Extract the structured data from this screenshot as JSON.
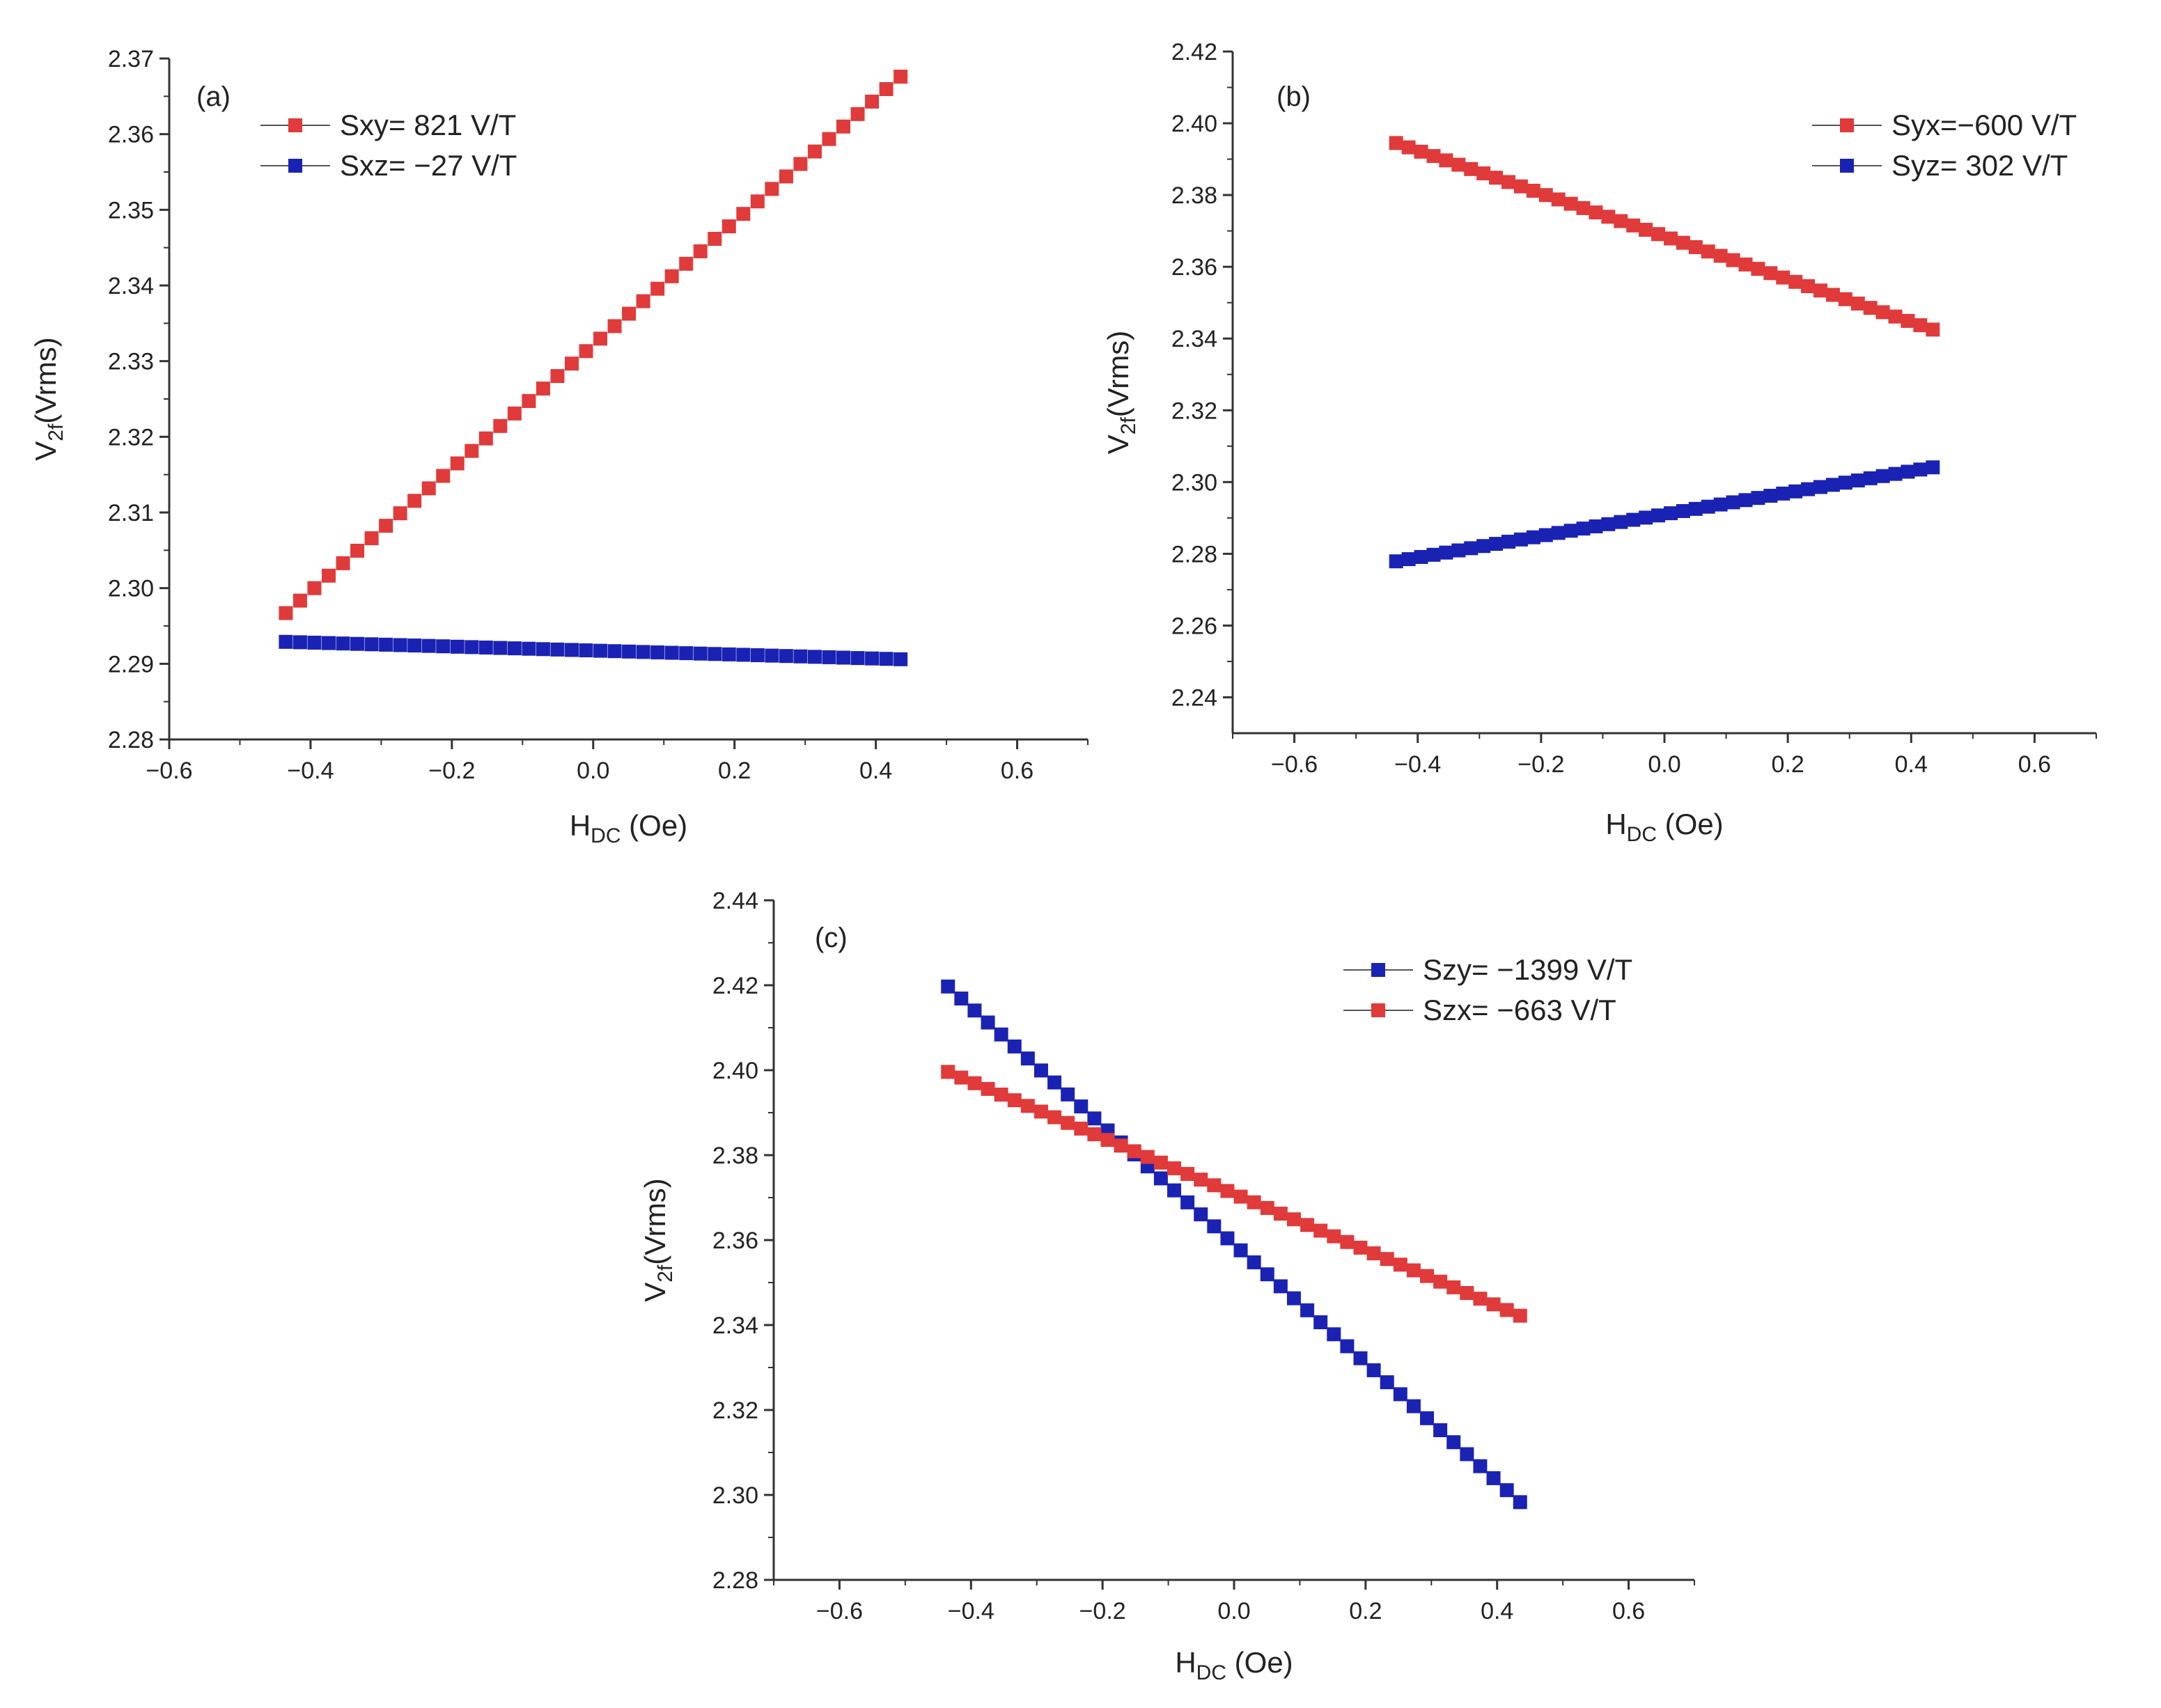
{
  "chart_data": [
    {
      "id": "a",
      "type": "scatter",
      "panel_label": "(a)",
      "xlabel": "H",
      "xlabel_sub": "DC",
      "xlabel_rest": " (Oe)",
      "ylabel": "V",
      "ylabel_sub": "2f",
      "ylabel_rest": "(Vrms)",
      "xlim": [
        -0.6,
        0.7
      ],
      "ylim": [
        2.28,
        2.37
      ],
      "xticks": [
        -0.6,
        -0.4,
        -0.2,
        0.0,
        0.2,
        0.4,
        0.6
      ],
      "xtick_labels": [
        "−0.6",
        "−0.4",
        "−0.2",
        "0.0",
        "0.2",
        "0.4",
        "0.6"
      ],
      "yticks": [
        2.28,
        2.29,
        2.3,
        2.31,
        2.32,
        2.33,
        2.34,
        2.35,
        2.36,
        2.37
      ],
      "ytick_labels": [
        "2.28",
        "2.29",
        "2.30",
        "2.31",
        "2.32",
        "2.33",
        "2.34",
        "2.35",
        "2.36",
        "2.37"
      ],
      "legend_position": "top-left",
      "series": [
        {
          "name": "Sxy= 821 V/T",
          "color": "#e03a3a",
          "x_start": -0.435,
          "x_end": 0.435,
          "points": 44,
          "y_start": 2.2967,
          "y_end": 2.3676
        },
        {
          "name": "Sxz= −27 V/T",
          "color": "#1a22b4",
          "x_start": -0.435,
          "x_end": 0.435,
          "points": 44,
          "y_start": 2.2929,
          "y_end": 2.2906
        }
      ]
    },
    {
      "id": "b",
      "type": "scatter",
      "panel_label": "(b)",
      "xlabel": "H",
      "xlabel_sub": "DC",
      "xlabel_rest": " (Oe)",
      "ylabel": "V",
      "ylabel_sub": "2f",
      "ylabel_rest": "(Vrms)",
      "xlim": [
        -0.7,
        0.7
      ],
      "ylim": [
        2.23,
        2.42
      ],
      "xticks": [
        -0.6,
        -0.4,
        -0.2,
        0.0,
        0.2,
        0.4,
        0.6
      ],
      "xtick_labels": [
        "−0.6",
        "−0.4",
        "−0.2",
        "0.0",
        "0.2",
        "0.4",
        "0.6"
      ],
      "yticks": [
        2.24,
        2.26,
        2.28,
        2.3,
        2.32,
        2.34,
        2.36,
        2.38,
        2.4,
        2.42
      ],
      "ytick_labels": [
        "2.24",
        "2.26",
        "2.28",
        "2.30",
        "2.32",
        "2.34",
        "2.36",
        "2.38",
        "2.40",
        "2.42"
      ],
      "legend_position": "top-right",
      "series": [
        {
          "name": "Syx=−600 V/T",
          "color": "#e03a3a",
          "x_start": -0.435,
          "x_end": 0.435,
          "points": 44,
          "y_start": 2.3945,
          "y_end": 2.3425
        },
        {
          "name": "Syz= 302 V/T",
          "color": "#1a22b4",
          "x_start": -0.435,
          "x_end": 0.435,
          "points": 44,
          "y_start": 2.2779,
          "y_end": 2.3041
        }
      ]
    },
    {
      "id": "c",
      "type": "scatter",
      "panel_label": "(c)",
      "xlabel": "H",
      "xlabel_sub": "DC",
      "xlabel_rest": " (Oe)",
      "ylabel": "V",
      "ylabel_sub": "2f",
      "ylabel_rest": "(Vrms)",
      "xlim": [
        -0.7,
        0.7
      ],
      "ylim": [
        2.28,
        2.44
      ],
      "xticks": [
        -0.6,
        -0.4,
        -0.2,
        0.0,
        0.2,
        0.4,
        0.6
      ],
      "xtick_labels": [
        "−0.6",
        "−0.4",
        "−0.2",
        "0.0",
        "0.2",
        "0.4",
        "0.6"
      ],
      "yticks": [
        2.28,
        2.3,
        2.32,
        2.34,
        2.36,
        2.38,
        2.4,
        2.42,
        2.44
      ],
      "ytick_labels": [
        "2.28",
        "2.30",
        "2.32",
        "2.34",
        "2.36",
        "2.38",
        "2.40",
        "2.42",
        "2.44"
      ],
      "legend_position": "top-right",
      "series": [
        {
          "name": "Szy=  −1399 V/T",
          "color": "#1a22b4",
          "x_start": -0.435,
          "x_end": 0.435,
          "points": 44,
          "y_start": 2.4197,
          "y_end": 2.2983
        },
        {
          "name": "Szx=  −663 V/T",
          "color": "#e03a3a",
          "x_start": -0.435,
          "x_end": 0.435,
          "points": 44,
          "y_start": 2.3996,
          "y_end": 2.3422
        }
      ]
    }
  ]
}
